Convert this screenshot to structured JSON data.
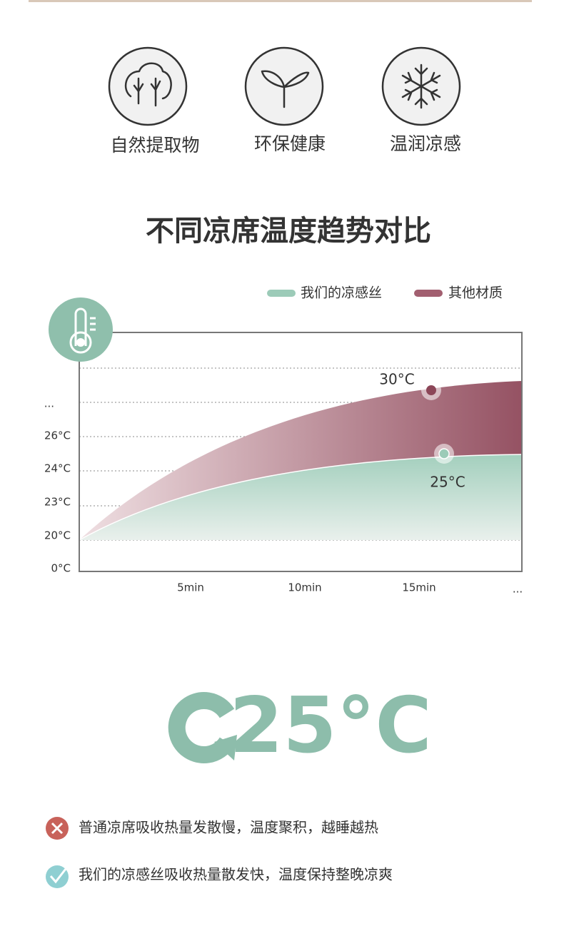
{
  "features": [
    {
      "label": "自然提取物"
    },
    {
      "label": "环保健康"
    },
    {
      "label": "温润凉感"
    }
  ],
  "title": "不同凉席温度趋势对比",
  "legend": [
    "我们的凉感丝",
    "其他材质"
  ],
  "chart": {
    "y_labels": [
      "0°C",
      "20°C",
      "23°C",
      "24°C",
      "26°C",
      "..."
    ],
    "x_labels": [
      "5min",
      "10min",
      "15min",
      "..."
    ],
    "annotations": [
      "30°C",
      "25°C"
    ]
  },
  "highlight": "25°C",
  "comparisons": [
    "普通凉席吸收热量发散慢，温度聚积，越睡越热",
    "我们的凉感丝吸收热量散发快，温度保持整晚凉爽"
  ]
}
